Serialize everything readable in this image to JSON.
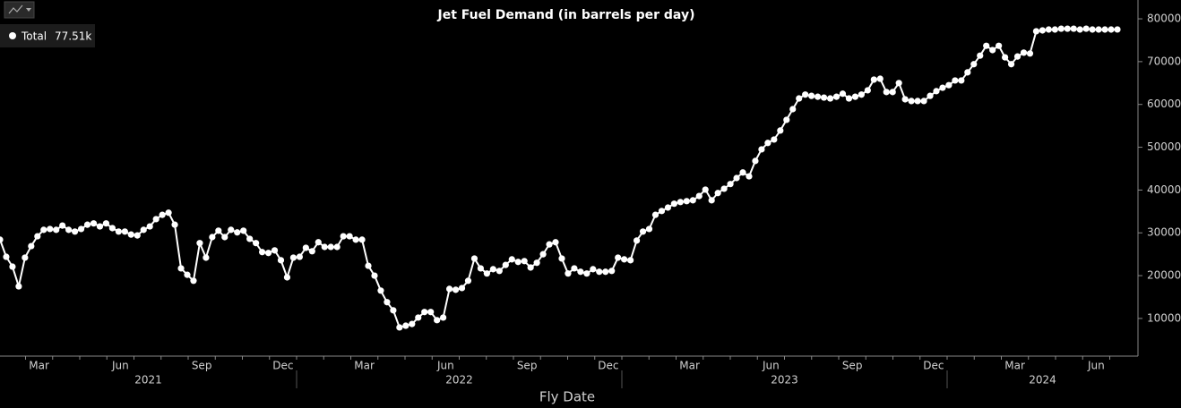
{
  "chart_data": {
    "type": "line",
    "title": "Jet Fuel Demand (in barrels per day)",
    "x_label": "Fly Date",
    "x_axis": {
      "months": [
        "Mar",
        "Jun",
        "Sep",
        "Dec",
        "Mar",
        "Jun",
        "Sep",
        "Dec",
        "Mar",
        "Jun",
        "Sep",
        "Dec",
        "Mar",
        "Jun"
      ],
      "years": [
        "2021",
        "2022",
        "2023",
        "2024"
      ]
    },
    "ylim": [
      1200,
      84400
    ],
    "yticks": [
      10000,
      20000,
      30000,
      40000,
      50000,
      60000,
      70000,
      80000
    ],
    "series": [
      {
        "name": "Total",
        "color": "#ffffff",
        "last_value_label": "77.51k",
        "values": [
          28400,
          24400,
          22100,
          17500,
          24200,
          26900,
          29200,
          30700,
          30900,
          30700,
          31700,
          30700,
          30300,
          30900,
          31900,
          32200,
          31500,
          32200,
          31100,
          30300,
          30300,
          29600,
          29400,
          30700,
          31500,
          33200,
          34200,
          34700,
          31900,
          21700,
          20200,
          18800,
          27600,
          24200,
          29000,
          30500,
          29000,
          30700,
          30100,
          30500,
          28600,
          27600,
          25500,
          25300,
          25900,
          23600,
          19600,
          24200,
          24400,
          26500,
          25700,
          27800,
          26700,
          26700,
          26700,
          29200,
          29200,
          28400,
          28400,
          22300,
          20000,
          16500,
          13800,
          11900,
          7900,
          8300,
          8700,
          10200,
          11500,
          11500,
          9600,
          10200,
          16900,
          16700,
          17100,
          18800,
          24000,
          21700,
          20500,
          21500,
          21100,
          22500,
          23800,
          23200,
          23400,
          21900,
          23000,
          25000,
          27300,
          27800,
          24000,
          20500,
          21700,
          20900,
          20500,
          21500,
          20900,
          20900,
          21100,
          24200,
          23800,
          23600,
          28200,
          30300,
          30900,
          34200,
          35100,
          35900,
          36800,
          37200,
          37400,
          37600,
          38600,
          40100,
          37600,
          39300,
          40300,
          41400,
          42800,
          44100,
          43200,
          46800,
          49500,
          51000,
          51800,
          53900,
          56400,
          58900,
          61400,
          62300,
          62000,
          61800,
          61600,
          61400,
          61800,
          62500,
          61400,
          61800,
          62300,
          63300,
          65800,
          66000,
          62900,
          62900,
          65000,
          61200,
          60800,
          60800,
          60800,
          62000,
          63100,
          63900,
          64500,
          65600,
          65600,
          67500,
          69400,
          71400,
          73700,
          72700,
          73700,
          71000,
          69400,
          71200,
          72100,
          71900,
          77100,
          77300,
          77500,
          77500,
          77700,
          77700,
          77700,
          77500,
          77700,
          77500,
          77500,
          77500,
          77500,
          77510
        ]
      }
    ]
  }
}
